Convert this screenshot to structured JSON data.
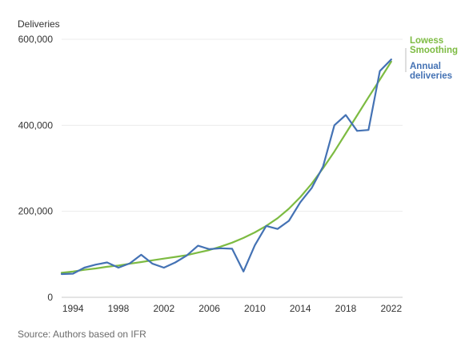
{
  "chart_data": {
    "type": "line",
    "ylabel": "Deliveries",
    "source": "Source: Authors based on IFR",
    "ylim": [
      0,
      600000
    ],
    "xlim": [
      1993,
      2023
    ],
    "y_ticks": [
      0,
      200000,
      400000,
      600000
    ],
    "y_tick_labels": [
      "0",
      "200,000",
      "400,000",
      "600,000"
    ],
    "x_ticks": [
      1994,
      1998,
      2002,
      2006,
      2010,
      2014,
      2018,
      2022
    ],
    "x_tick_labels": [
      "1994",
      "1998",
      "2002",
      "2006",
      "2010",
      "2014",
      "2018",
      "2022"
    ],
    "grid": "horizontal",
    "series": [
      {
        "name_lines": [
          "Lowess",
          "Smoothing"
        ],
        "color": "#7dbb42",
        "x": [
          1993,
          1994,
          1995,
          1996,
          1997,
          1998,
          1999,
          2000,
          2001,
          2002,
          2003,
          2004,
          2005,
          2006,
          2007,
          2008,
          2009,
          2010,
          2011,
          2012,
          2013,
          2014,
          2015,
          2016,
          2017,
          2018,
          2019,
          2020,
          2021,
          2022
        ],
        "values": [
          57000,
          60000,
          64000,
          67000,
          71000,
          74000,
          78000,
          82000,
          86000,
          90000,
          94000,
          98000,
          104000,
          110000,
          118000,
          127000,
          138000,
          151000,
          166000,
          184000,
          206000,
          233000,
          264000,
          300000,
          339000,
          381000,
          423000,
          465000,
          506000,
          548000
        ]
      },
      {
        "name_lines": [
          "Annual",
          "deliveries"
        ],
        "color": "#4472b4",
        "x": [
          1993,
          1994,
          1995,
          1996,
          1997,
          1998,
          1999,
          2000,
          2001,
          2002,
          2003,
          2004,
          2005,
          2006,
          2007,
          2008,
          2009,
          2010,
          2011,
          2012,
          2013,
          2014,
          2015,
          2016,
          2017,
          2018,
          2019,
          2020,
          2021,
          2022
        ],
        "values": [
          54000,
          55000,
          69000,
          76000,
          81000,
          69000,
          79000,
          99000,
          78000,
          69000,
          81000,
          97000,
          120000,
          112000,
          114000,
          113000,
          60000,
          121000,
          166000,
          159000,
          178000,
          221000,
          254000,
          304000,
          400000,
          424000,
          387000,
          389000,
          526000,
          553000
        ]
      }
    ]
  }
}
